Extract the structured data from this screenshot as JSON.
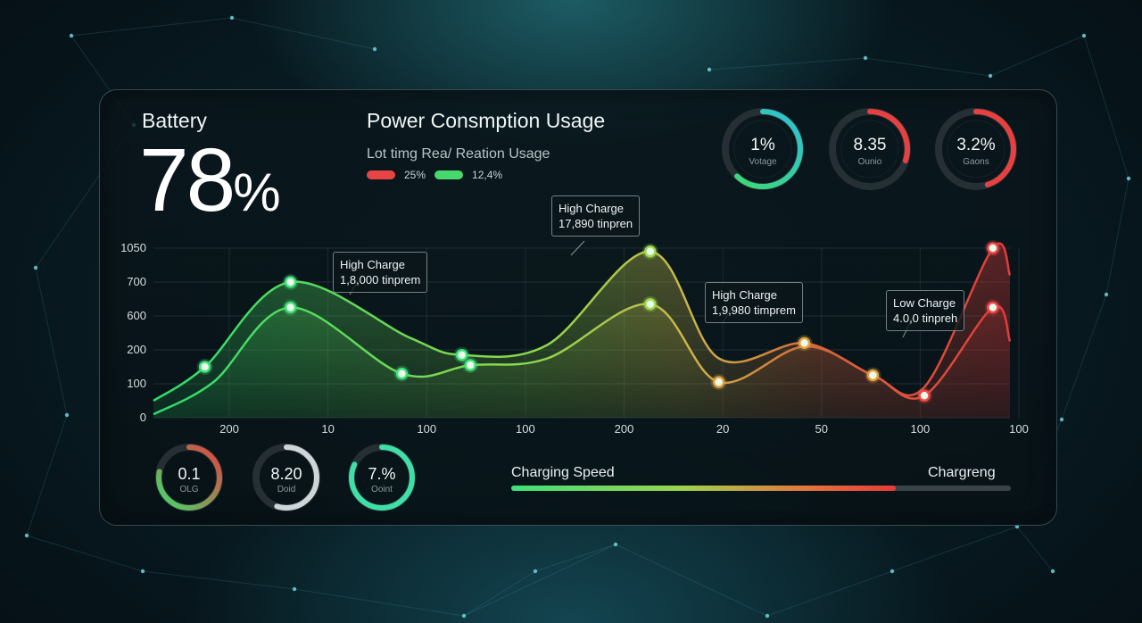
{
  "battery": {
    "label": "Battery",
    "value": "78",
    "unit": "%"
  },
  "chart_header": {
    "title": "Power Consmption Usage",
    "subtitle": "Lot timg Rea/ Reation Usage",
    "legend": [
      {
        "color": "#e74444",
        "label": "25%"
      },
      {
        "color": "#47d96d",
        "label": "12,4%"
      }
    ]
  },
  "top_gauges": [
    {
      "value": "1%",
      "label": "Votage",
      "progress": 0.62,
      "colors": [
        "#3edc6a",
        "#2fbfd6"
      ]
    },
    {
      "value": "8.35",
      "label": "Ounio",
      "progress": 0.3,
      "colors": [
        "#e84040",
        "#e84040"
      ]
    },
    {
      "value": "3.2%",
      "label": "Gaons",
      "progress": 0.45,
      "colors": [
        "#e84040",
        "#e84040"
      ]
    }
  ],
  "bottom_gauges": [
    {
      "value": "0.1",
      "label": "OLG",
      "colors": [
        "#3edc6a",
        "#e84040"
      ]
    },
    {
      "value": "8.20",
      "label": "Doid",
      "colors": [
        "#cfd6d8",
        "#cfd6d8"
      ]
    },
    {
      "value": "7.%",
      "label": "Ooint",
      "colors": [
        "#3ee0a8",
        "#3ee0a8"
      ]
    }
  ],
  "chart_data": {
    "type": "area",
    "y_ticks": [
      "1050",
      "700",
      "600",
      "200",
      "100",
      "0"
    ],
    "x_ticks": [
      "200",
      "10",
      "100",
      "100",
      "200",
      "20",
      "50",
      "100",
      "100"
    ],
    "series": [
      {
        "x": [
          0,
          0.06,
          0.16,
          0.3,
          0.36,
          0.46,
          0.58,
          0.66,
          0.76,
          0.84,
          0.9,
          0.98,
          1
        ],
        "y": [
          0.1,
          0.3,
          0.8,
          0.47,
          0.37,
          0.43,
          0.98,
          0.35,
          0.44,
          0.25,
          0.18,
          1.0,
          0.84
        ]
      },
      {
        "x": [
          0,
          0.07,
          0.16,
          0.29,
          0.37,
          0.46,
          0.58,
          0.66,
          0.76,
          0.84,
          0.9,
          0.98,
          1
        ],
        "y": [
          0.02,
          0.21,
          0.65,
          0.26,
          0.31,
          0.35,
          0.67,
          0.21,
          0.42,
          0.25,
          0.13,
          0.65,
          0.45
        ]
      }
    ],
    "markers": [
      {
        "s": 0,
        "i": 1
      },
      {
        "s": 0,
        "i": 2
      },
      {
        "s": 0,
        "i": 4
      },
      {
        "s": 0,
        "i": 6
      },
      {
        "s": 0,
        "i": 8
      },
      {
        "s": 0,
        "i": 11
      },
      {
        "s": 1,
        "i": 2
      },
      {
        "s": 1,
        "i": 3
      },
      {
        "s": 1,
        "i": 4
      },
      {
        "s": 1,
        "i": 6
      },
      {
        "s": 1,
        "i": 7
      },
      {
        "s": 1,
        "i": 9
      },
      {
        "s": 1,
        "i": 10
      },
      {
        "s": 1,
        "i": 11
      }
    ],
    "annotations": [
      {
        "title": "High Charge",
        "detail": "17,890 tinpren"
      },
      {
        "title": "High Charge",
        "detail": "1,8,000 tinprem"
      },
      {
        "title": "High Charge",
        "detail": "1,9,980 timprem"
      },
      {
        "title": "Low Charge",
        "detail": "4.0,0 tinpreh"
      }
    ]
  },
  "charging": {
    "label": "Charging Speed",
    "right_label": "Chargreng",
    "progress": 0.77
  }
}
